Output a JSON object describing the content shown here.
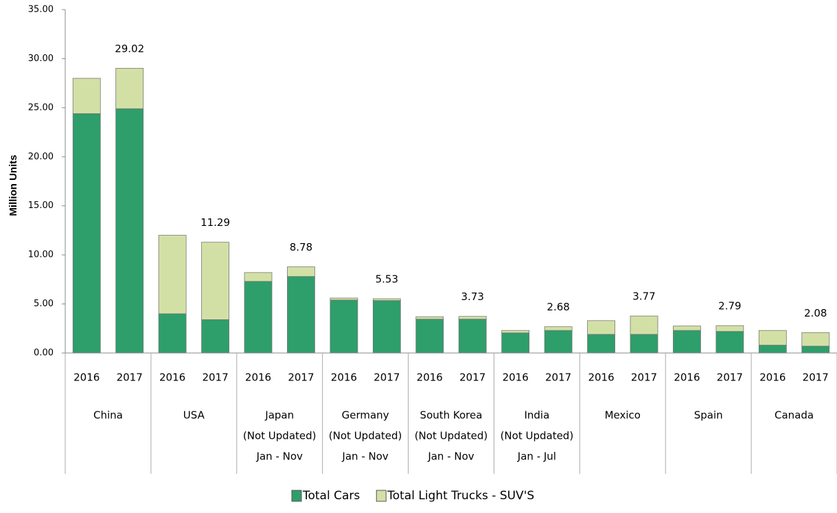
{
  "chart_data": {
    "type": "stacked-bar",
    "y_label": "Million Units",
    "categories": [
      "2016",
      "2017",
      "2016",
      "2017",
      "2016",
      "2017",
      "2016",
      "2017",
      "2016",
      "2017",
      "2016",
      "2017",
      "2016",
      "2017",
      "2016",
      "2017",
      "2016",
      "2017"
    ],
    "groups": [
      [
        "China"
      ],
      [
        "USA"
      ],
      [
        "Japan",
        "(Not Updated)",
        "Jan - Nov"
      ],
      [
        "Germany",
        "(Not Updated)",
        "Jan - Nov"
      ],
      [
        "South Korea",
        "(Not Updated)",
        "Jan - Nov"
      ],
      [
        "India",
        "(Not Updated)",
        "Jan - Jul"
      ],
      [
        "Mexico"
      ],
      [
        "Spain"
      ],
      [
        "Canada"
      ]
    ],
    "series": [
      {
        "name": "Total Cars",
        "color": "#2e9e6b",
        "values": [
          24.4,
          24.9,
          4.0,
          3.4,
          7.3,
          7.8,
          5.4,
          5.35,
          3.45,
          3.45,
          2.05,
          2.3,
          1.9,
          1.9,
          2.3,
          2.2,
          0.8,
          0.7
        ]
      },
      {
        "name": "Total Light Trucks - SUV'S",
        "color": "#d3e0a5",
        "values": [
          3.6,
          4.12,
          8.0,
          7.89,
          0.9,
          0.98,
          0.2,
          0.18,
          0.25,
          0.28,
          0.25,
          0.38,
          1.4,
          1.87,
          0.45,
          0.59,
          1.5,
          1.38
        ]
      }
    ],
    "totals": [
      null,
      29.02,
      null,
      11.29,
      null,
      8.78,
      null,
      5.53,
      null,
      3.73,
      null,
      2.68,
      null,
      3.77,
      null,
      2.79,
      null,
      2.08
    ],
    "ylim": [
      0,
      35
    ],
    "yticks": [
      {
        "value": 0,
        "label": "0.00"
      },
      {
        "value": 5,
        "label": "5.00"
      },
      {
        "value": 10,
        "label": "10.00"
      },
      {
        "value": 15,
        "label": "15.00"
      },
      {
        "value": 20,
        "label": "20.00"
      },
      {
        "value": 25,
        "label": "25.00"
      },
      {
        "value": 30,
        "label": "30.00"
      },
      {
        "value": 35,
        "label": "35.00"
      }
    ],
    "legend": "bottom"
  }
}
